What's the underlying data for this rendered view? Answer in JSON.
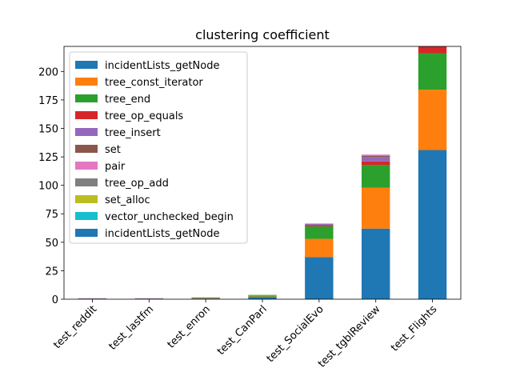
{
  "chart_data": {
    "type": "bar",
    "stacked": true,
    "title": "clustering coefficient",
    "xlabel": "",
    "ylabel": "",
    "ylim": [
      0,
      222
    ],
    "yticks": [
      0,
      25,
      50,
      75,
      100,
      125,
      150,
      175,
      200
    ],
    "grid": false,
    "legend_position": "top-left",
    "categories": [
      "test_reddit",
      "test_lastfm",
      "test_enron",
      "test_CanParl",
      "test_SocialEvo",
      "test_tgblReview",
      "test_Flights"
    ],
    "series": [
      {
        "name": "incidentLists_getNode",
        "color": "#1f77b4",
        "values": [
          0.2,
          0.2,
          0.3,
          2.0,
          37.0,
          62.0,
          131.0
        ]
      },
      {
        "name": "tree_const_iterator",
        "color": "#ff7f0e",
        "values": [
          0.1,
          0.1,
          0.2,
          0.4,
          16.0,
          36.0,
          53.0
        ]
      },
      {
        "name": "tree_end",
        "color": "#2ca02c",
        "values": [
          0.1,
          0.1,
          0.2,
          0.5,
          11.0,
          20.0,
          32.0
        ]
      },
      {
        "name": "tree_op_equals",
        "color": "#d62728",
        "values": [
          0.05,
          0.05,
          0.1,
          0.2,
          1.0,
          3.0,
          6.0
        ]
      },
      {
        "name": "tree_insert",
        "color": "#9467bd",
        "values": [
          0.3,
          0.3,
          0.2,
          0.2,
          1.0,
          4.0,
          0.0
        ]
      },
      {
        "name": "set",
        "color": "#8c564b",
        "values": [
          0.1,
          0.1,
          0.4,
          0.2,
          0.0,
          1.0,
          0.0
        ]
      },
      {
        "name": "pair",
        "color": "#e377c2",
        "values": [
          0.05,
          0.05,
          0.1,
          0.1,
          0.5,
          1.0,
          0.0
        ]
      },
      {
        "name": "tree_op_add",
        "color": "#7f7f7f",
        "values": [
          0.0,
          0.0,
          0.1,
          0.1,
          0.0,
          0.0,
          0.0
        ]
      },
      {
        "name": "set_alloc",
        "color": "#bcbd22",
        "values": [
          0.0,
          0.0,
          0.1,
          0.2,
          0.0,
          0.0,
          0.0
        ]
      },
      {
        "name": "vector_unchecked_begin",
        "color": "#17becf",
        "values": [
          0.0,
          0.0,
          0.0,
          0.1,
          0.0,
          0.0,
          0.0
        ]
      },
      {
        "name": "incidentLists_getNode",
        "color": "#1f77b4",
        "values": [
          0.0,
          0.0,
          0.0,
          0.0,
          0.0,
          0.0,
          0.0
        ]
      }
    ]
  }
}
